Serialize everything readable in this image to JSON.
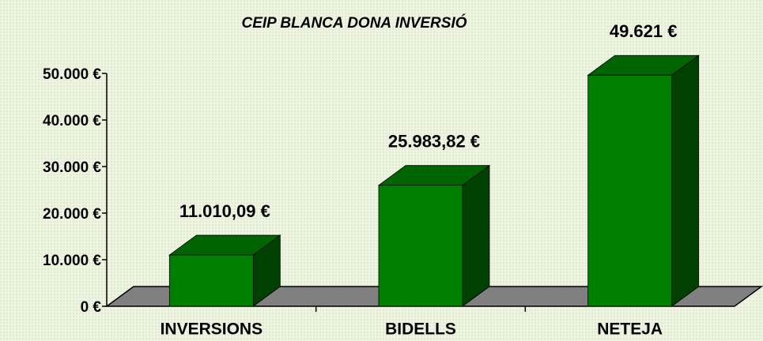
{
  "chart_data": {
    "type": "bar3d",
    "title": "CEIP BLANCA DONA INVERSIÓ",
    "categories": [
      "INVERSIONS",
      "BIDELLS",
      "NETEJA"
    ],
    "values": [
      11010.09,
      25983.82,
      49621
    ],
    "value_labels": [
      "11.010,09 €",
      "25.983,82 €",
      "49.621 €"
    ],
    "color": "#008000",
    "ylim": [
      0,
      50000
    ],
    "yticks": [
      {
        "value": 0,
        "label": "0 €"
      },
      {
        "value": 10000,
        "label": "10.000 €"
      },
      {
        "value": 20000,
        "label": "20.000 €"
      },
      {
        "value": 30000,
        "label": "30.000 €"
      },
      {
        "value": 40000,
        "label": "40.000 €"
      },
      {
        "value": 50000,
        "label": "50.000 €"
      }
    ]
  }
}
